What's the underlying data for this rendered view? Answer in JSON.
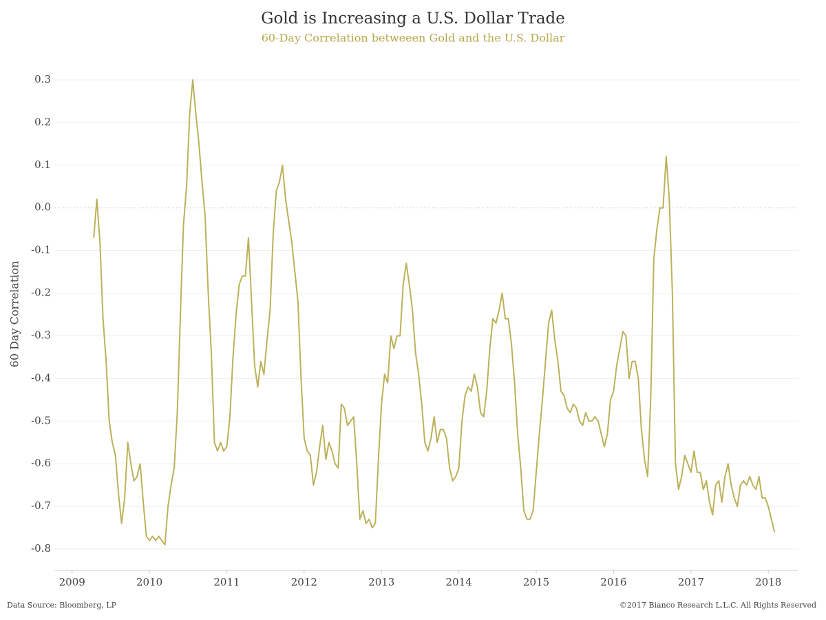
{
  "chart_data": {
    "type": "line",
    "title": "Gold is Increasing a U.S. Dollar Trade",
    "subtitle": "60-Day Correlation betweeen Gold and the U.S. Dollar",
    "y_label": "60 Day Correlation",
    "source": "Data Source: Bloomberg, LP",
    "copyright": "©2017 Bianco Research L.L.C. All Rights Reserved",
    "color": "#bcb15a",
    "grid": true,
    "xlim": [
      2008.78,
      2018.39
    ],
    "xticks": [
      2009,
      2010,
      2011,
      2012,
      2013,
      2014,
      2015,
      2016,
      2017,
      2018
    ],
    "ylim": [
      -0.85,
      0.35
    ],
    "yticks": [
      0.3,
      0.2,
      0.1,
      {
        "value": 0,
        "label": "0.0"
      },
      -0.1,
      -0.2,
      -0.3,
      -0.4,
      -0.5,
      -0.6,
      -0.7,
      -0.8
    ],
    "x": [
      2009.28,
      2009.32,
      2009.36,
      2009.4,
      2009.44,
      2009.48,
      2009.52,
      2009.56,
      2009.6,
      2009.64,
      2009.68,
      2009.72,
      2009.76,
      2009.8,
      2009.84,
      2009.88,
      2009.92,
      2009.96,
      2010,
      2010.04,
      2010.08,
      2010.12,
      2010.16,
      2010.2,
      2010.24,
      2010.28,
      2010.32,
      2010.36,
      2010.4,
      2010.44,
      2010.48,
      2010.52,
      2010.56,
      2010.6,
      2010.64,
      2010.68,
      2010.72,
      2010.76,
      2010.8,
      2010.84,
      2010.88,
      2010.92,
      2010.96,
      2011,
      2011.04,
      2011.08,
      2011.12,
      2011.16,
      2011.2,
      2011.24,
      2011.28,
      2011.32,
      2011.36,
      2011.4,
      2011.44,
      2011.48,
      2011.52,
      2011.56,
      2011.6,
      2011.64,
      2011.68,
      2011.72,
      2011.76,
      2011.8,
      2011.84,
      2011.88,
      2011.92,
      2011.96,
      2012,
      2012.04,
      2012.08,
      2012.12,
      2012.16,
      2012.2,
      2012.24,
      2012.28,
      2012.32,
      2012.36,
      2012.4,
      2012.44,
      2012.48,
      2012.52,
      2012.56,
      2012.6,
      2012.64,
      2012.68,
      2012.72,
      2012.76,
      2012.8,
      2012.84,
      2012.88,
      2012.92,
      2012.96,
      2013,
      2013.04,
      2013.08,
      2013.12,
      2013.16,
      2013.2,
      2013.24,
      2013.28,
      2013.32,
      2013.36,
      2013.4,
      2013.44,
      2013.48,
      2013.52,
      2013.56,
      2013.6,
      2013.64,
      2013.68,
      2013.72,
      2013.76,
      2013.8,
      2013.84,
      2013.88,
      2013.92,
      2013.96,
      2014,
      2014.04,
      2014.08,
      2014.12,
      2014.16,
      2014.2,
      2014.24,
      2014.28,
      2014.32,
      2014.36,
      2014.4,
      2014.44,
      2014.48,
      2014.52,
      2014.56,
      2014.6,
      2014.64,
      2014.68,
      2014.72,
      2014.76,
      2014.8,
      2014.84,
      2014.88,
      2014.92,
      2014.96,
      2015,
      2015.04,
      2015.08,
      2015.12,
      2015.16,
      2015.2,
      2015.24,
      2015.28,
      2015.32,
      2015.36,
      2015.4,
      2015.44,
      2015.48,
      2015.52,
      2015.56,
      2015.6,
      2015.64,
      2015.68,
      2015.72,
      2015.76,
      2015.8,
      2015.84,
      2015.88,
      2015.92,
      2015.96,
      2016,
      2016.04,
      2016.08,
      2016.12,
      2016.16,
      2016.2,
      2016.24,
      2016.28,
      2016.32,
      2016.36,
      2016.4,
      2016.44,
      2016.48,
      2016.52,
      2016.56,
      2016.6,
      2016.64,
      2016.68,
      2016.72,
      2016.76,
      2016.8,
      2016.84,
      2016.88,
      2016.92,
      2016.96,
      2017,
      2017.04,
      2017.08,
      2017.12,
      2017.16,
      2017.2,
      2017.24,
      2017.28,
      2017.32,
      2017.36,
      2017.4,
      2017.44,
      2017.48,
      2017.52,
      2017.56,
      2017.6,
      2017.64,
      2017.68,
      2017.72,
      2017.76,
      2017.8,
      2017.84,
      2017.88,
      2017.92,
      2017.96,
      2018,
      2018.04,
      2018.08
    ],
    "values": [
      -0.07,
      0.02,
      -0.08,
      -0.26,
      -0.36,
      -0.5,
      -0.55,
      -0.58,
      -0.67,
      -0.74,
      -0.68,
      -0.55,
      -0.6,
      -0.64,
      -0.63,
      -0.6,
      -0.69,
      -0.77,
      -0.78,
      -0.77,
      -0.78,
      -0.77,
      -0.78,
      -0.79,
      -0.7,
      -0.65,
      -0.61,
      -0.48,
      -0.25,
      -0.04,
      0.05,
      0.22,
      0.3,
      0.22,
      0.15,
      0.06,
      -0.02,
      -0.2,
      -0.34,
      -0.55,
      -0.57,
      -0.55,
      -0.57,
      -0.56,
      -0.49,
      -0.35,
      -0.25,
      -0.18,
      -0.16,
      -0.16,
      -0.07,
      -0.22,
      -0.37,
      -0.42,
      -0.36,
      -0.39,
      -0.31,
      -0.24,
      -0.06,
      0.04,
      0.06,
      0.1,
      0.02,
      -0.03,
      -0.08,
      -0.15,
      -0.22,
      -0.4,
      -0.54,
      -0.57,
      -0.58,
      -0.65,
      -0.62,
      -0.56,
      -0.51,
      -0.59,
      -0.55,
      -0.57,
      -0.6,
      -0.61,
      -0.46,
      -0.47,
      -0.51,
      -0.5,
      -0.49,
      -0.6,
      -0.73,
      -0.71,
      -0.74,
      -0.73,
      -0.75,
      -0.74,
      -0.59,
      -0.46,
      -0.39,
      -0.41,
      -0.3,
      -0.33,
      -0.3,
      -0.3,
      -0.18,
      -0.13,
      -0.18,
      -0.24,
      -0.34,
      -0.39,
      -0.46,
      -0.55,
      -0.57,
      -0.54,
      -0.49,
      -0.55,
      -0.52,
      -0.52,
      -0.54,
      -0.61,
      -0.64,
      -0.63,
      -0.61,
      -0.5,
      -0.44,
      -0.42,
      -0.43,
      -0.39,
      -0.42,
      -0.48,
      -0.49,
      -0.43,
      -0.33,
      -0.26,
      -0.27,
      -0.24,
      -0.2,
      -0.26,
      -0.26,
      -0.32,
      -0.41,
      -0.53,
      -0.61,
      -0.71,
      -0.73,
      -0.73,
      -0.71,
      -0.62,
      -0.53,
      -0.45,
      -0.36,
      -0.27,
      -0.24,
      -0.31,
      -0.36,
      -0.43,
      -0.44,
      -0.47,
      -0.48,
      -0.46,
      -0.47,
      -0.5,
      -0.51,
      -0.48,
      -0.5,
      -0.5,
      -0.49,
      -0.5,
      -0.53,
      -0.56,
      -0.53,
      -0.45,
      -0.43,
      -0.37,
      -0.33,
      -0.29,
      -0.3,
      -0.4,
      -0.36,
      -0.36,
      -0.4,
      -0.52,
      -0.59,
      -0.63,
      -0.45,
      -0.12,
      -0.05,
      0,
      0,
      0.12,
      0.02,
      -0.2,
      -0.6,
      -0.66,
      -0.63,
      -0.58,
      -0.6,
      -0.62,
      -0.57,
      -0.62,
      -0.62,
      -0.66,
      -0.64,
      -0.69,
      -0.72,
      -0.65,
      -0.64,
      -0.69,
      -0.63,
      -0.6,
      -0.65,
      -0.68,
      -0.7,
      -0.65,
      -0.64,
      -0.65,
      -0.63,
      -0.65,
      -0.66,
      -0.63,
      -0.68,
      -0.68,
      -0.7,
      -0.73,
      -0.76
    ]
  }
}
